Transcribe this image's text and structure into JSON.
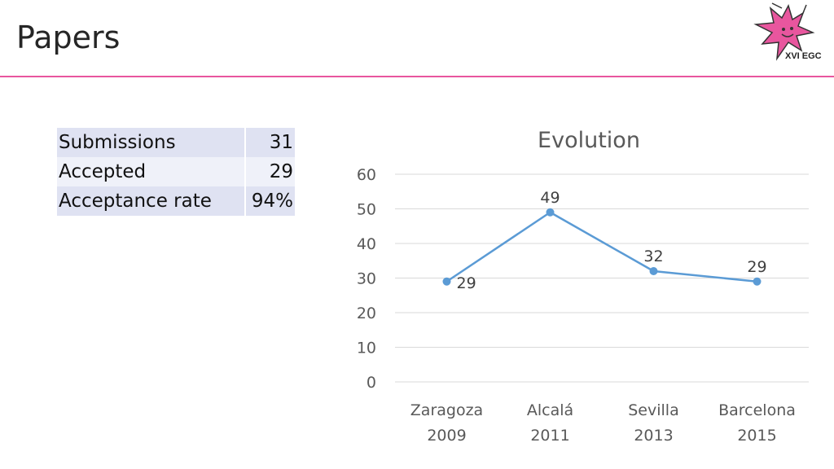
{
  "page": {
    "title": "Papers"
  },
  "logo": {
    "text": "XVI EGC",
    "colors": {
      "primary": "#e8569e",
      "outline": "#333333"
    }
  },
  "stats_table": {
    "rows": [
      {
        "label": "Submissions",
        "value": "31"
      },
      {
        "label": "Accepted",
        "value": "29"
      },
      {
        "label": "Acceptance rate",
        "value": "94%"
      }
    ]
  },
  "colors": {
    "accent": "#e8569e",
    "series": "#5b9bd5",
    "grid": "#d9d9d9",
    "table_odd": "#dfe2f2",
    "table_even": "#eff1f9"
  },
  "chart_data": {
    "type": "line",
    "title": "Evolution",
    "categories": [
      [
        "Zaragoza",
        "2009"
      ],
      [
        "Alcalá",
        "2011"
      ],
      [
        "Sevilla",
        "2013"
      ],
      [
        "Barcelona",
        "2015"
      ]
    ],
    "series": [
      {
        "values": [
          29,
          49,
          32,
          29
        ]
      }
    ],
    "ylim": [
      0,
      60
    ],
    "yticks": [
      0,
      10,
      20,
      30,
      40,
      50,
      60
    ],
    "grid": true,
    "data_labels": true,
    "legend": "none"
  }
}
